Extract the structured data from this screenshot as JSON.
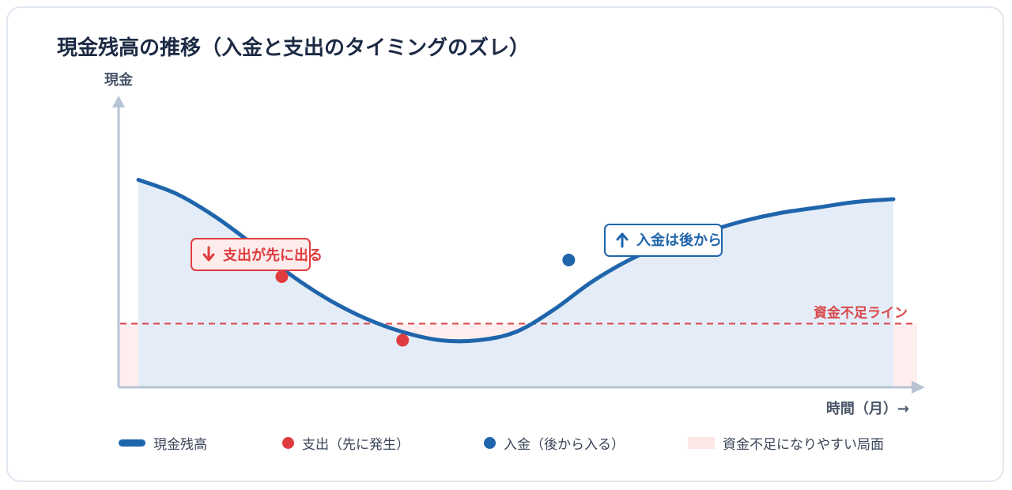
{
  "title": "現金残高の推移（入金と支出のタイミングのズレ）",
  "colors": {
    "balance": "#1f65ac",
    "balance_fill": "#e4edf7",
    "expense": "#e03c3f",
    "shortage_fill": "#fde8e8",
    "threshold": "#d8474a",
    "axis": "#b7c3d3"
  },
  "chart_data": {
    "type": "area",
    "ylabel": "現金",
    "xlabel": "時間（月）→",
    "ylim": [
      0,
      100
    ],
    "xlim": [
      0,
      100
    ],
    "x": [
      0,
      5,
      10,
      15,
      20,
      25,
      30,
      35,
      40,
      45,
      50,
      55,
      60,
      65,
      70,
      75,
      80,
      85,
      90,
      95,
      100
    ],
    "series": [
      {
        "name": "現金残高",
        "values": [
          75,
          70,
          62,
          52,
          41,
          32,
          25,
          20,
          17,
          17,
          20,
          28,
          38,
          46,
          52,
          56,
          60,
          63,
          65,
          67,
          68
        ]
      }
    ],
    "threshold": {
      "label": "資金不足ライン",
      "value": 23
    },
    "expense_points": [
      {
        "x": 19,
        "y": 40
      },
      {
        "x": 35,
        "y": 17
      }
    ],
    "income_points": [
      {
        "x": 57,
        "y": 46
      }
    ],
    "annotations": [
      {
        "text": "支出が先に出る",
        "icon": "arrow-down-icon",
        "kind": "expense"
      },
      {
        "text": "入金は後から",
        "icon": "arrow-up-icon",
        "kind": "income"
      }
    ]
  },
  "legend": [
    {
      "label": "現金残高",
      "icon": "line-swatch"
    },
    {
      "label": "支出（先に発生）",
      "icon": "red-dot"
    },
    {
      "label": "入金（後から入る）",
      "icon": "blue-dot"
    },
    {
      "label": "資金不足になりやすい局面",
      "icon": "pink-rect"
    }
  ]
}
